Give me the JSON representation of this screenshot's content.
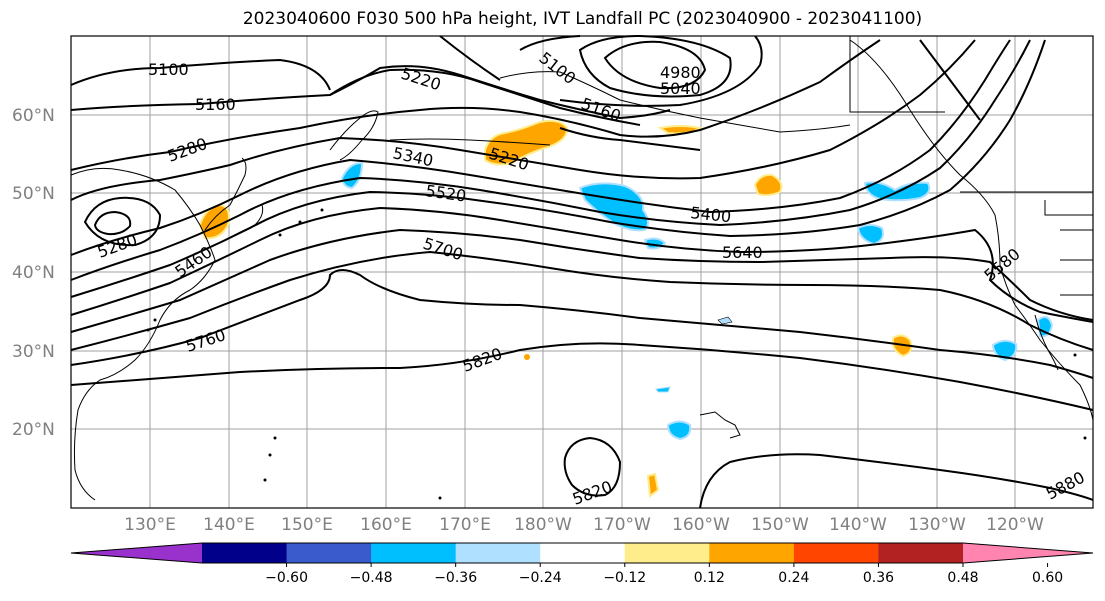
{
  "title": "2023040600 F030 500 hPa height, IVT Landfall PC (2023040900 - 2023041100)",
  "lat_labels": [
    "60°N",
    "50°N",
    "40°N",
    "30°N",
    "20°N"
  ],
  "lon_labels": [
    "130°E",
    "140°E",
    "150°E",
    "160°E",
    "170°E",
    "180°W",
    "170°W",
    "160°W",
    "150°W",
    "140°W",
    "130°W",
    "120°W"
  ],
  "contour_labels": [
    "5100",
    "5160",
    "5280",
    "5280",
    "5460",
    "5760",
    "4980",
    "5040",
    "5100",
    "5160",
    "5220",
    "5220",
    "5340",
    "5520",
    "5700",
    "5400",
    "5640",
    "5580",
    "5820",
    "5820",
    "5880"
  ],
  "colorbar": {
    "tick_labels": [
      "−0.60",
      "−0.48",
      "−0.36",
      "−0.24",
      "−0.12",
      "0.12",
      "0.24",
      "0.36",
      "0.48",
      "0.60"
    ],
    "colors": [
      "#9932cc",
      "#00008b",
      "#3a5bcb",
      "#00bfff",
      "#b0e0ff",
      "#ffffff",
      "#ffec8b",
      "#ffa500",
      "#ff4500",
      "#b22222",
      "#ff85b0"
    ]
  },
  "colors": {
    "contour": "#000000",
    "grid": "#a0a0a0",
    "positive_shade": "#ffa500",
    "negative_shade": "#00bfff"
  }
}
